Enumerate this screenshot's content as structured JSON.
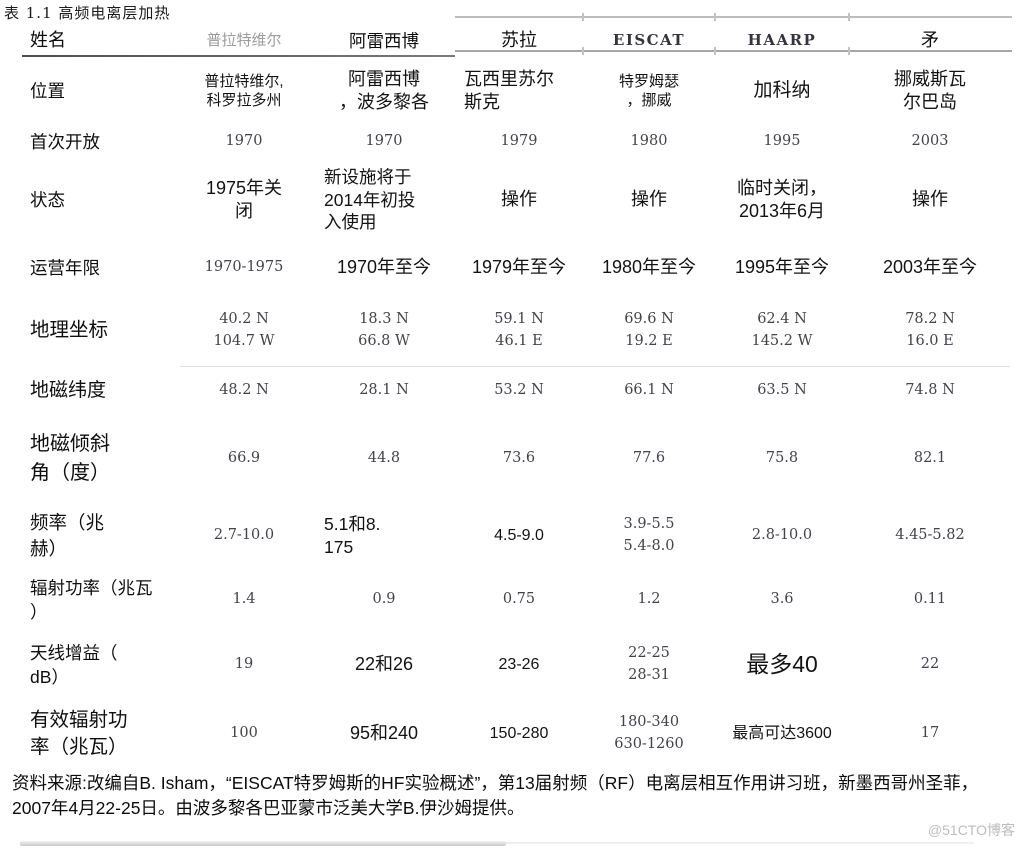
{
  "title": "表 1.1 高频电离层加热",
  "watermark": "@51CTO博客",
  "source_note": "资料来源:改编自B. Isham，“EISCAT特罗姆斯的HF实验概述”，第13届射频（RF）电离层相互作用讲习班，新墨西哥州圣菲，2007年4月22-25日。由波多黎各巴亚蒙市泛美大学B.伊沙姆提供。",
  "table": {
    "name_label": "姓名",
    "columns": [
      "普拉特维尔",
      "阿雷西博",
      "苏拉",
      "EISCAT",
      "HAARP",
      "矛"
    ],
    "rows": [
      {
        "label": "位置",
        "cells": [
          "普拉特维尔,\n科罗拉多州",
          "阿雷西博\n，波多黎各",
          "瓦西里苏尔\n斯克",
          "特罗姆瑟\n，挪威",
          "加科纳",
          "挪威斯瓦\n尔巴岛"
        ]
      },
      {
        "label": "首次开放",
        "cells": [
          "1970",
          "1970",
          "1979",
          "1980",
          "1995",
          "2003"
        ]
      },
      {
        "label": "状态",
        "cells": [
          "1975年关\n闭",
          "新设施将于\n2014年初投\n入使用",
          "操作",
          "操作",
          "临时关闭，\n2013年6月",
          "操作"
        ]
      },
      {
        "label": "运营年限",
        "cells": [
          "1970-1975",
          "1970年至今",
          "1979年至今",
          "1980年至今",
          "1995年至今",
          "2003年至今"
        ]
      },
      {
        "label": "地理坐标",
        "cells": [
          "40.2 N\n104.7 W",
          "18.3 N\n66.8 W",
          "59.1 N\n46.1 E",
          "69.6 N\n19.2 E",
          "62.4 N\n145.2 W",
          "78.2 N\n16.0 E"
        ]
      },
      {
        "label": "地磁纬度",
        "cells": [
          "48.2 N",
          "28.1 N",
          "53.2 N",
          "66.1 N",
          "63.5 N",
          "74.8 N"
        ]
      },
      {
        "label": "地磁倾斜\n角（度）",
        "cells": [
          "66.9",
          "44.8",
          "73.6",
          "77.6",
          "75.8",
          "82.1"
        ]
      },
      {
        "label": "频率（兆\n赫）",
        "cells": [
          "2.7-10.0",
          "5.1和8.\n175",
          "4.5-9.0",
          "3.9-5.5\n5.4-8.0",
          "2.8-10.0",
          "4.45-5.82"
        ]
      },
      {
        "label": "辐射功率（兆瓦\n）",
        "cells": [
          "1.4",
          "0.9",
          "0.75",
          "1.2",
          "3.6",
          "0.11"
        ]
      },
      {
        "label": "天线增益（\ndB）",
        "cells": [
          "19",
          "22和26",
          "23-26",
          "22-25\n28-31",
          "最多40",
          "22"
        ]
      },
      {
        "label": "有效辐射功\n率（兆瓦）",
        "cells": [
          "100",
          "95和240",
          "150-280",
          "180-340\n630-1260",
          "最高可达3600",
          "17"
        ]
      }
    ]
  }
}
